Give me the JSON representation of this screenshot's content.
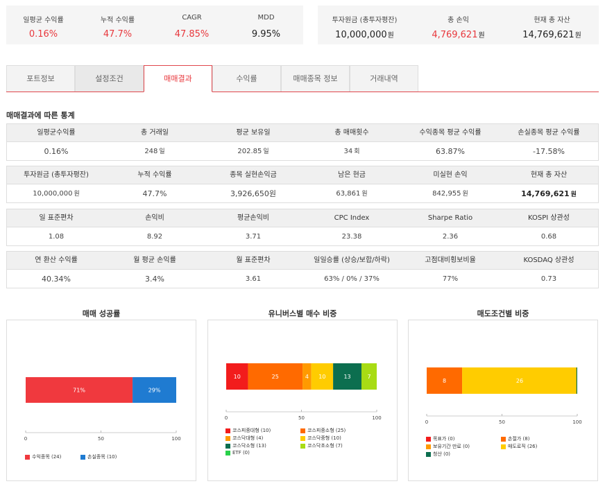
{
  "summary_left": [
    {
      "label": "일평균 수익률",
      "value": "0.16%",
      "color": "red"
    },
    {
      "label": "누적 수익률",
      "value": "47.7%",
      "color": "red"
    },
    {
      "label": "CAGR",
      "value": "47.85%",
      "color": "red"
    },
    {
      "label": "MDD",
      "value": "9.95%",
      "color": "dark"
    }
  ],
  "summary_right": [
    {
      "label": "투자원금 (총투자평잔)",
      "value": "10,000,000",
      "unit": "원",
      "color": "dark"
    },
    {
      "label": "총 손익",
      "value": "4,769,621",
      "unit": "원",
      "color": "red"
    },
    {
      "label": "현재 총 자산",
      "value": "14,769,621",
      "unit": "원",
      "color": "dark"
    }
  ],
  "tabs": [
    "포트정보",
    "설정조건",
    "매매결과",
    "수익률",
    "매매종목 정보",
    "거래내역"
  ],
  "active_tab": 2,
  "section_title": "매매결과에 따른 통계",
  "stats": [
    [
      {
        "head": "일평균수익률",
        "value": "0.16%",
        "color": "red"
      },
      {
        "head": "총 거래일",
        "value": "248",
        "unit": "일"
      },
      {
        "head": "평균 보유일",
        "value": "202.85",
        "unit": "일"
      },
      {
        "head": "총 매매횟수",
        "value": "34",
        "unit": "회"
      },
      {
        "head": "수익종목 평균 수익률",
        "value": "63.87%",
        "color": "red"
      },
      {
        "head": "손실종목 평균 수익률",
        "value": "-17.58%",
        "color": "blue"
      }
    ],
    [
      {
        "head": "투자원금 (총투자평잔)",
        "value": "10,000,000",
        "unit": "원"
      },
      {
        "head": "누적 수익률",
        "value": "47.7%",
        "color": "red"
      },
      {
        "head": "종목 실현손익금",
        "value": "3,926,650원",
        "color": "red"
      },
      {
        "head": "남은 현금",
        "value": "63,861",
        "unit": "원"
      },
      {
        "head": "미실현 손익",
        "value": "842,955",
        "unit": "원"
      },
      {
        "head": "현재 총 자산",
        "value": "14,769,621",
        "unit": "원",
        "bold": true
      }
    ],
    [
      {
        "head": "일 표준편차",
        "value": "1.08"
      },
      {
        "head": "손익비",
        "value": "8.92"
      },
      {
        "head": "평균손익비",
        "value": "3.71"
      },
      {
        "head": "CPC Index",
        "value": "23.38"
      },
      {
        "head": "Sharpe Ratio",
        "value": "2.36"
      },
      {
        "head": "KOSPI 상관성",
        "value": "0.68"
      }
    ],
    [
      {
        "head": "연 환산 수익률",
        "value": "40.34%",
        "color": "red"
      },
      {
        "head": "월 평균 손익률",
        "value": "3.4%",
        "color": "red"
      },
      {
        "head": "월 표준편차",
        "value": "3.61"
      },
      {
        "head": "일일승률 (상승/보합/하락)",
        "value": "63% / 0% / 37%"
      },
      {
        "head": "고점대비횡보비율",
        "value": "77%"
      },
      {
        "head": "KOSDAQ 상관성",
        "value": "0.73"
      }
    ]
  ],
  "chart_data": [
    {
      "type": "bar",
      "title": "매매 성공률",
      "orientation": "horizontal-stacked",
      "xlim": [
        0,
        100
      ],
      "ticks": [
        "0",
        "50",
        "100"
      ],
      "series": [
        {
          "name": "수익종목 (24)",
          "value": 71,
          "label": "71%",
          "color": "#f0393e"
        },
        {
          "name": "손실종목 (10)",
          "value": 29,
          "label": "29%",
          "color": "#1f7bd1"
        }
      ]
    },
    {
      "type": "bar",
      "title": "유니버스별 매수 비중",
      "orientation": "horizontal-stacked",
      "xlim": [
        0,
        100
      ],
      "ticks": [
        "0",
        "50",
        "100"
      ],
      "series": [
        {
          "name": "코스피중대형 (10)",
          "value": 10,
          "label": "10",
          "color": "#f21c1c"
        },
        {
          "name": "코스피중소형 (25)",
          "value": 25,
          "label": "25",
          "color": "#ff6a00"
        },
        {
          "name": "코스닥대형 (4)",
          "value": 4,
          "label": "4",
          "color": "#ff9a00"
        },
        {
          "name": "코스닥중형 (10)",
          "value": 10,
          "label": "10",
          "color": "#ffcc00"
        },
        {
          "name": "코스닥소형 (13)",
          "value": 13,
          "label": "13",
          "color": "#0c6e4f"
        },
        {
          "name": "코스닥초소형 (7)",
          "value": 7,
          "label": "7",
          "color": "#a8dc14"
        },
        {
          "name": "ETF (0)",
          "value": 0,
          "label": "",
          "color": "#29d04a"
        }
      ]
    },
    {
      "type": "bar",
      "title": "매도조건별 비중",
      "orientation": "horizontal-stacked",
      "xlim": [
        0,
        100
      ],
      "ticks": [
        "0",
        "50",
        "100"
      ],
      "series": [
        {
          "name": "목표가 (0)",
          "value": 0,
          "label": "",
          "color": "#f21c1c"
        },
        {
          "name": "손절가 (8)",
          "value": 8,
          "label": "8",
          "color": "#ff6a00"
        },
        {
          "name": "보유기간 만료 (0)",
          "value": 0,
          "label": "",
          "color": "#ff9a00"
        },
        {
          "name": "매도로직 (26)",
          "value": 26,
          "label": "26",
          "color": "#ffcc00"
        },
        {
          "name": "청산 (0)",
          "value": 0,
          "label": "",
          "color": "#0c6e4f"
        }
      ]
    }
  ]
}
